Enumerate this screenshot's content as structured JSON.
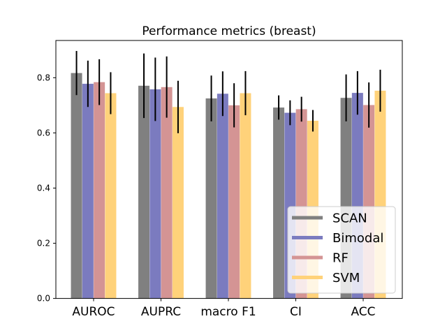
{
  "chart_data": {
    "type": "bar",
    "title": "Performance metrics (breast)",
    "xlabel": "",
    "ylabel": "",
    "categories": [
      "AUROC",
      "AUPRC",
      "macro F1",
      "CI",
      "ACC"
    ],
    "ylim": [
      0,
      0.935
    ],
    "yticks": [
      0.0,
      0.2,
      0.4,
      0.6,
      0.8
    ],
    "ytick_labels": [
      "0.0",
      "0.2",
      "0.4",
      "0.6",
      "0.8"
    ],
    "grid": false,
    "legend_position": "lower-right",
    "series": [
      {
        "name": "SCAN",
        "color": "#808080",
        "values": [
          0.817,
          0.771,
          0.725,
          0.692,
          0.727
        ],
        "errors": [
          0.08,
          0.117,
          0.083,
          0.044,
          0.085
        ]
      },
      {
        "name": "Bimodal",
        "color": "#7b7bbf",
        "values": [
          0.778,
          0.758,
          0.742,
          0.673,
          0.745
        ],
        "errors": [
          0.084,
          0.115,
          0.081,
          0.045,
          0.079
        ]
      },
      {
        "name": "RF",
        "color": "#d49494",
        "values": [
          0.784,
          0.766,
          0.7,
          0.686,
          0.701
        ],
        "errors": [
          0.083,
          0.111,
          0.08,
          0.045,
          0.082
        ]
      },
      {
        "name": "SVM",
        "color": "#ffd27a",
        "values": [
          0.744,
          0.694,
          0.744,
          0.644,
          0.753
        ],
        "errors": [
          0.076,
          0.095,
          0.08,
          0.039,
          0.076
        ]
      }
    ]
  }
}
